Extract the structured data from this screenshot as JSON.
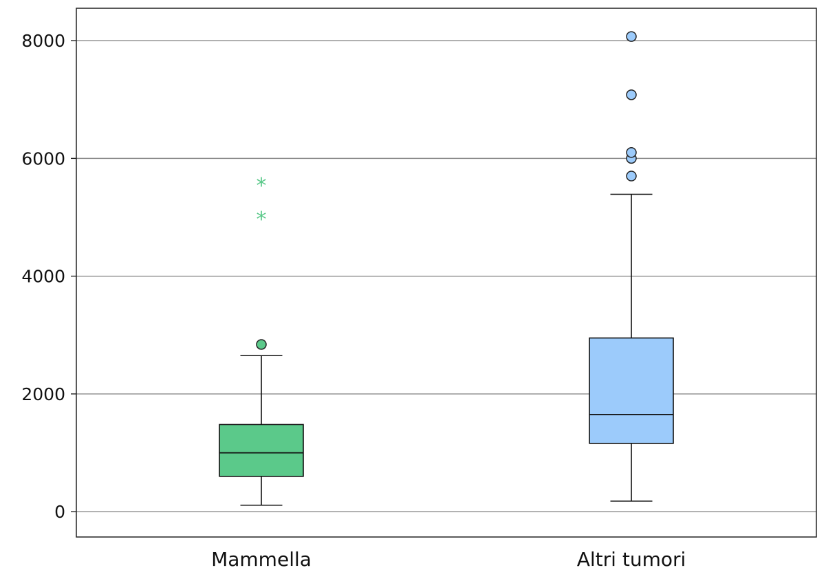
{
  "chart_data": {
    "type": "boxplot",
    "ylim": [
      -430,
      8550
    ],
    "y_ticks": [
      0,
      2000,
      4000,
      6000,
      8000
    ],
    "y_tick_labels": [
      "0",
      "2000",
      "4000",
      "6000",
      "8000"
    ],
    "grid": true,
    "categories": [
      "Mammella",
      "Altri tumori"
    ],
    "boxes": [
      {
        "category": "Mammella",
        "color": "#5bc98a",
        "whisker_low": 110,
        "q1": 600,
        "median": 1000,
        "q3": 1480,
        "whisker_high": 2650,
        "outliers": [
          2840
        ],
        "extremes": [
          5000,
          5570
        ]
      },
      {
        "category": "Altri tumori",
        "color": "#9ccbfb",
        "whisker_low": 180,
        "q1": 1160,
        "median": 1650,
        "q3": 2950,
        "whisker_high": 5390,
        "outliers": [
          5700,
          6000,
          6100,
          7080,
          8070
        ],
        "extremes": []
      }
    ]
  }
}
